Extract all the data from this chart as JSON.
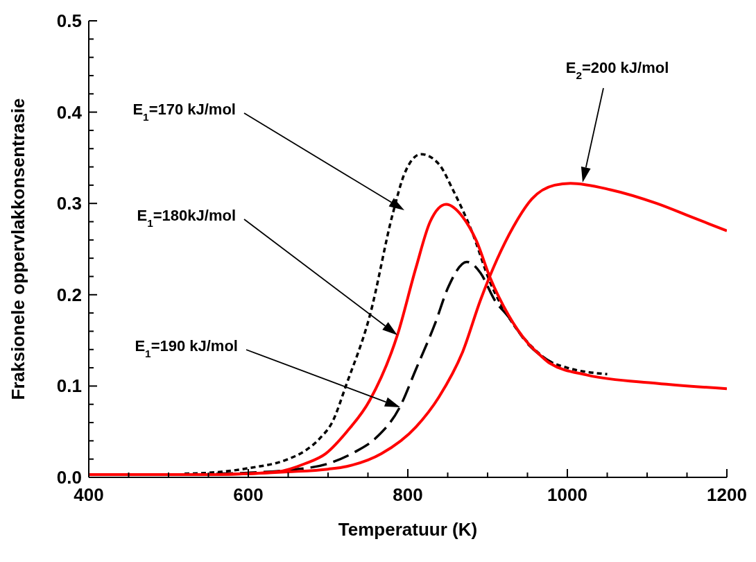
{
  "chart_data": {
    "type": "line",
    "xlabel": "Temperatuur (K)",
    "ylabel": "Fraksionele oppervlakkonsentrasie",
    "xlim": [
      400,
      1200
    ],
    "ylim": [
      0,
      0.5
    ],
    "xticks": [
      400,
      {
        "value": 450,
        "label": null
      },
      {
        "value": 500,
        "label": null
      },
      {
        "value": 550,
        "label": null
      },
      600,
      {
        "value": 650,
        "label": null
      },
      {
        "value": 700,
        "label": null
      },
      {
        "value": 750,
        "label": null
      },
      800,
      {
        "value": 850,
        "label": null
      },
      {
        "value": 900,
        "label": null
      },
      {
        "value": 950,
        "label": null
      },
      1000,
      {
        "value": 1050,
        "label": null
      },
      {
        "value": 1100,
        "label": null
      },
      {
        "value": 1150,
        "label": null
      },
      1200
    ],
    "yticks": [
      {
        "value": 0,
        "label": "0.0"
      },
      {
        "value": 0.02,
        "label": null
      },
      {
        "value": 0.04,
        "label": null
      },
      {
        "value": 0.06,
        "label": null
      },
      {
        "value": 0.08,
        "label": null
      },
      {
        "value": 0.1,
        "label": "0.1"
      },
      {
        "value": 0.12,
        "label": null
      },
      {
        "value": 0.14,
        "label": null
      },
      {
        "value": 0.16,
        "label": null
      },
      {
        "value": 0.18,
        "label": null
      },
      {
        "value": 0.2,
        "label": "0.2"
      },
      {
        "value": 0.22,
        "label": null
      },
      {
        "value": 0.24,
        "label": null
      },
      {
        "value": 0.26,
        "label": null
      },
      {
        "value": 0.28,
        "label": null
      },
      {
        "value": 0.3,
        "label": "0.3"
      },
      {
        "value": 0.32,
        "label": null
      },
      {
        "value": 0.34,
        "label": null
      },
      {
        "value": 0.36,
        "label": null
      },
      {
        "value": 0.38,
        "label": null
      },
      {
        "value": 0.4,
        "label": "0.4"
      },
      {
        "value": 0.42,
        "label": null
      },
      {
        "value": 0.44,
        "label": null
      },
      {
        "value": 0.46,
        "label": null
      },
      {
        "value": 0.48,
        "label": null
      },
      {
        "value": 0.5,
        "label": "0.5"
      }
    ],
    "marker": "none",
    "series": [
      {
        "color": "#000000",
        "line_style": "dotted",
        "x": [
          520,
          550,
          600,
          650,
          671,
          690,
          705,
          723.5,
          752,
          781.5,
          796,
          816.5,
          839,
          856.5,
          880,
          903,
          932,
          955.6,
          978,
          1000,
          1050
        ],
        "values": [
          0.004,
          0.005,
          0.01,
          0.02,
          0.029,
          0.043,
          0.06,
          0.103,
          0.176,
          0.29,
          0.333,
          0.354,
          0.343,
          0.315,
          0.27,
          0.214,
          0.168,
          0.143,
          0.127,
          0.12,
          0.113
        ]
      },
      {
        "color": "#000000",
        "line_style": "dashed",
        "x": [
          560,
          600,
          650,
          700,
          732,
          761,
          790,
          810,
          834,
          851,
          874,
          891,
          909,
          926,
          949.6,
          980
        ],
        "values": [
          0.004,
          0.005,
          0.008,
          0.015,
          0.027,
          0.044,
          0.077,
          0.118,
          0.168,
          0.209,
          0.236,
          0.224,
          0.194,
          0.176,
          0.147,
          0.126
        ]
      },
      {
        "color": "#ff0000",
        "line_style": "solid",
        "x": [
          400,
          550,
          600,
          636,
          671,
          697,
          723.5,
          752,
          787,
          810,
          828,
          848,
          869,
          886,
          903,
          926,
          949.6,
          967,
          978,
          1025,
          1112,
          1200
        ],
        "values": [
          0.003,
          0.003,
          0.004,
          0.006,
          0.015,
          0.026,
          0.05,
          0.084,
          0.156,
          0.229,
          0.28,
          0.299,
          0.285,
          0.259,
          0.219,
          0.178,
          0.148,
          0.133,
          0.125,
          0.112,
          0.103,
          0.097
        ]
      },
      {
        "color": "#ff0000",
        "line_style": "solid",
        "x": [
          400,
          550,
          600,
          650,
          700,
          723.5,
          767,
          810,
          839,
          869,
          891,
          912,
          932,
          955.6,
          984,
          1004,
          1054,
          1112,
          1156,
          1200
        ],
        "values": [
          0.003,
          0.003,
          0.004,
          0.006,
          0.009,
          0.012,
          0.026,
          0.055,
          0.088,
          0.138,
          0.194,
          0.239,
          0.274,
          0.305,
          0.32,
          0.322,
          0.315,
          0.3,
          0.285,
          0.27
        ]
      }
    ],
    "annotations": [
      "E$_{1}$=170 kJ/mol",
      "E$_{1}$=180kJ/mol",
      "E$_{1}$=190 kJ/mol",
      "E$_{2}$=200 kJ/mol"
    ]
  }
}
